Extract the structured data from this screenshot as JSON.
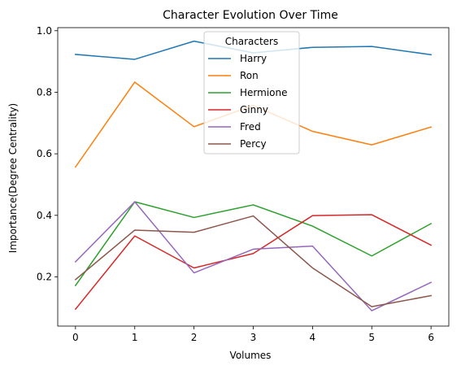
{
  "chart_data": {
    "type": "line",
    "title": "Character Evolution Over Time",
    "xlabel": "Volumes",
    "ylabel": "Importance(Degree Centrality)",
    "x": [
      0,
      1,
      2,
      3,
      4,
      5,
      6
    ],
    "xlim": [
      -0.3,
      6.3
    ],
    "ylim": [
      0.04,
      1.01
    ],
    "xticks": [
      "0",
      "1",
      "2",
      "3",
      "4",
      "5",
      "6"
    ],
    "yticks": [
      0.2,
      0.4,
      0.6,
      0.8,
      1.0
    ],
    "ytick_labels": [
      "0.2",
      "0.4",
      "0.6",
      "0.8",
      "1.0"
    ],
    "grid": false,
    "legend": {
      "title": "Characters",
      "placement": "upper center"
    },
    "series": [
      {
        "name": "Harry",
        "color": "#1f77b4",
        "values": [
          0.923,
          0.907,
          0.966,
          0.928,
          0.946,
          0.949,
          0.922
        ]
      },
      {
        "name": "Ron",
        "color": "#ff7f0e",
        "values": [
          0.557,
          0.833,
          0.688,
          0.757,
          0.673,
          0.629,
          0.687
        ]
      },
      {
        "name": "Hermione",
        "color": "#2ca02c",
        "values": [
          0.172,
          0.444,
          0.393,
          0.434,
          0.365,
          0.268,
          0.373
        ]
      },
      {
        "name": "Ginny",
        "color": "#d62728",
        "values": [
          0.095,
          0.333,
          0.229,
          0.276,
          0.399,
          0.402,
          0.303
        ]
      },
      {
        "name": "Fred",
        "color": "#9467bd",
        "values": [
          0.249,
          0.444,
          0.213,
          0.29,
          0.3,
          0.09,
          0.182
        ]
      },
      {
        "name": "Percy",
        "color": "#8c564b",
        "values": [
          0.191,
          0.352,
          0.345,
          0.398,
          0.229,
          0.103,
          0.139
        ]
      }
    ]
  }
}
